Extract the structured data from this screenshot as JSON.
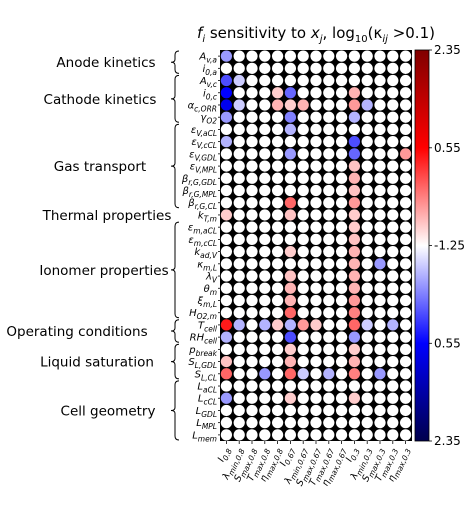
{
  "chart_data": {
    "type": "heatmap",
    "title": "f_i sensitivity to x_j, log10(κ_ij > 0.1)",
    "title_parts": {
      "a": "f",
      "b": "i",
      "c": " sensitivity to ",
      "d": "x",
      "e": "j",
      "f": ", log",
      "g": "10",
      "h": "(κ",
      "i": "ij",
      "j": " >0.1)"
    },
    "rows": [
      {
        "label": "A_v,a",
        "base": "A",
        "sub": "v,a"
      },
      {
        "label": "i_0,a",
        "base": "i",
        "sub": "0,a"
      },
      {
        "label": "A_v,c",
        "base": "A",
        "sub": "v,c"
      },
      {
        "label": "i_0,c",
        "base": "i",
        "sub": "0,c"
      },
      {
        "label": "α_c,ORR",
        "base": "α",
        "sub": "c,ORR"
      },
      {
        "label": "γ_O2",
        "base": "γ",
        "sub": "O2"
      },
      {
        "label": "ε_V,aCL",
        "base": "ε",
        "sub": "V,aCL"
      },
      {
        "label": "ε_V,cCL",
        "base": "ε",
        "sub": "V,cCL"
      },
      {
        "label": "ε_V,GDL",
        "base": "ε",
        "sub": "V,GDL"
      },
      {
        "label": "ε_V,MPL",
        "base": "ε",
        "sub": "V,MPL"
      },
      {
        "label": "β_r,G,GDL",
        "base": "β",
        "sub": "r,G,GDL"
      },
      {
        "label": "β_r,G,MPL",
        "base": "β",
        "sub": "r,G,MPL"
      },
      {
        "label": "β_r,G,CL",
        "base": "β",
        "sub": "r,G,CL"
      },
      {
        "label": "k_T,m",
        "base": "k",
        "sub": "T,m"
      },
      {
        "label": "ε_m,aCL",
        "base": "ε",
        "sub": "m,aCL"
      },
      {
        "label": "ε_m,cCL",
        "base": "ε",
        "sub": "m,cCL"
      },
      {
        "label": "k_ad,V",
        "base": "k",
        "sub": "ad,V"
      },
      {
        "label": "κ_m,L",
        "base": "κ",
        "sub": "m,L"
      },
      {
        "label": "λ_V",
        "base": "λ",
        "sub": "V"
      },
      {
        "label": "θ_m",
        "base": "θ",
        "sub": "m"
      },
      {
        "label": "ξ_m,L",
        "base": "ξ",
        "sub": "m,L"
      },
      {
        "label": "H_O2,m",
        "base": "H",
        "sub": "O2,m"
      },
      {
        "label": "T_cell",
        "base": "T",
        "sub": "cell"
      },
      {
        "label": "RH_cell",
        "base": "RH",
        "sub": "cell"
      },
      {
        "label": "p_break",
        "base": "p",
        "sub": "break"
      },
      {
        "label": "S_L,GDL",
        "base": "S",
        "sub": "L,GDL"
      },
      {
        "label": "S_L,CL",
        "base": "S",
        "sub": "L,CL"
      },
      {
        "label": "L_aCL",
        "base": "L",
        "sub": "aCL"
      },
      {
        "label": "L_cCL",
        "base": "L",
        "sub": "cCL"
      },
      {
        "label": "L_GDL",
        "base": "L",
        "sub": "GDL"
      },
      {
        "label": "L_MPL",
        "base": "L",
        "sub": "MPL"
      },
      {
        "label": "L_mem",
        "base": "L",
        "sub": "mem"
      }
    ],
    "columns": [
      {
        "label": "I_0.8",
        "base": "I",
        "sub": "0.8"
      },
      {
        "label": "λ_min,0.8",
        "base": "λ",
        "sub": "min,0.8"
      },
      {
        "label": "S_max,0.8",
        "base": "S",
        "sub": "max,0.8"
      },
      {
        "label": "T_max,0.8",
        "base": "T",
        "sub": "max,0.8"
      },
      {
        "label": "η_max,0.8",
        "base": "η",
        "sub": "max,0.8"
      },
      {
        "label": "I_0.67",
        "base": "I",
        "sub": "0.67"
      },
      {
        "label": "λ_min,0.67",
        "base": "λ",
        "sub": "min,0.67"
      },
      {
        "label": "S_max,0.67",
        "base": "S",
        "sub": "max,0.67"
      },
      {
        "label": "T_max,0.67",
        "base": "T",
        "sub": "max,0.67"
      },
      {
        "label": "η_max,0.67",
        "base": "η",
        "sub": "max,0.67"
      },
      {
        "label": "I_0.3",
        "base": "I",
        "sub": "0.3"
      },
      {
        "label": "λ_min,0.3",
        "base": "λ",
        "sub": "min,0.3"
      },
      {
        "label": "S_max,0.3",
        "base": "S",
        "sub": "max,0.3"
      },
      {
        "label": "T_max,0.3",
        "base": "T",
        "sub": "max,0.3"
      },
      {
        "label": "η_max,0.3",
        "base": "η",
        "sub": "max,0.3"
      }
    ],
    "groups": [
      {
        "name": "Anode kinetics",
        "rows": [
          0,
          1
        ]
      },
      {
        "name": "Cathode kinetics",
        "rows": [
          2,
          5
        ]
      },
      {
        "name": "Gas transport",
        "rows": [
          6,
          12
        ]
      },
      {
        "name": "Thermal properties",
        "rows": [
          13,
          13
        ]
      },
      {
        "name": "Ionomer properties",
        "rows": [
          14,
          21
        ]
      },
      {
        "name": "Operating conditions",
        "rows": [
          22,
          23
        ]
      },
      {
        "name": "Liquid saturation",
        "rows": [
          24,
          26
        ]
      },
      {
        "name": "Cell geometry",
        "rows": [
          27,
          31
        ]
      }
    ],
    "nonzero_cells": [
      [
        0,
        0,
        -0.2
      ],
      [
        2,
        0,
        -0.35
      ],
      [
        2,
        1,
        -0.1
      ],
      [
        3,
        0,
        -0.5
      ],
      [
        3,
        4,
        0.1
      ],
      [
        3,
        5,
        -0.3
      ],
      [
        3,
        10,
        0.15
      ],
      [
        4,
        0,
        -0.55
      ],
      [
        4,
        1,
        -0.1
      ],
      [
        4,
        4,
        0.15
      ],
      [
        4,
        5,
        0.1
      ],
      [
        4,
        6,
        0.15
      ],
      [
        4,
        10,
        0.2
      ],
      [
        4,
        11,
        -0.15
      ],
      [
        5,
        0,
        -0.2
      ],
      [
        5,
        5,
        -0.25
      ],
      [
        5,
        10,
        -0.15
      ],
      [
        6,
        5,
        -0.15
      ],
      [
        7,
        0,
        -0.15
      ],
      [
        7,
        10,
        -0.35
      ],
      [
        8,
        5,
        -0.2
      ],
      [
        8,
        10,
        -0.3
      ],
      [
        8,
        14,
        0.2
      ],
      [
        9,
        10,
        0.12
      ],
      [
        10,
        10,
        0.15
      ],
      [
        11,
        10,
        0.12
      ],
      [
        12,
        5,
        0.3
      ],
      [
        12,
        10,
        0.2
      ],
      [
        13,
        0,
        0.1
      ],
      [
        13,
        5,
        0.12
      ],
      [
        13,
        10,
        0.1
      ],
      [
        14,
        10,
        0.1
      ],
      [
        15,
        10,
        0.12
      ],
      [
        16,
        5,
        0.1
      ],
      [
        16,
        10,
        0.15
      ],
      [
        17,
        10,
        0.15
      ],
      [
        17,
        12,
        -0.2
      ],
      [
        18,
        5,
        0.12
      ],
      [
        18,
        10,
        0.15
      ],
      [
        19,
        5,
        0.15
      ],
      [
        19,
        10,
        0.15
      ],
      [
        20,
        5,
        0.15
      ],
      [
        20,
        10,
        0.2
      ],
      [
        21,
        5,
        0.3
      ],
      [
        21,
        10,
        0.25
      ],
      [
        22,
        0,
        0.45
      ],
      [
        22,
        1,
        -0.15
      ],
      [
        22,
        3,
        -0.15
      ],
      [
        22,
        4,
        0.1
      ],
      [
        22,
        5,
        -0.15
      ],
      [
        22,
        6,
        0.2
      ],
      [
        22,
        7,
        0.1
      ],
      [
        22,
        10,
        0.3
      ],
      [
        22,
        11,
        -0.1
      ],
      [
        22,
        13,
        -0.15
      ],
      [
        23,
        0,
        -0.15
      ],
      [
        23,
        5,
        -0.35
      ],
      [
        23,
        10,
        -0.2
      ],
      [
        24,
        5,
        0.1
      ],
      [
        24,
        10,
        0.1
      ],
      [
        25,
        0,
        0.12
      ],
      [
        25,
        5,
        0.15
      ],
      [
        25,
        10,
        0.15
      ],
      [
        26,
        0,
        0.3
      ],
      [
        26,
        3,
        -0.2
      ],
      [
        26,
        5,
        0.3
      ],
      [
        26,
        6,
        -0.1
      ],
      [
        26,
        8,
        -0.15
      ],
      [
        26,
        10,
        0.25
      ],
      [
        26,
        12,
        -0.2
      ],
      [
        28,
        0,
        -0.2
      ],
      [
        28,
        5,
        0.1
      ],
      [
        28,
        10,
        0.1
      ]
    ],
    "colorbar": {
      "colormap": "seismic",
      "ticks": [
        "2.35",
        "0.55",
        "-1.25",
        "0.55",
        "2.35"
      ],
      "top_color": "#800000",
      "mid_color": "#ffffff",
      "bottom_color": "#00004d"
    },
    "empty_cell_color": "#ffffff",
    "cell_background": "#000000",
    "grid": false,
    "legend": "right colorbar"
  }
}
